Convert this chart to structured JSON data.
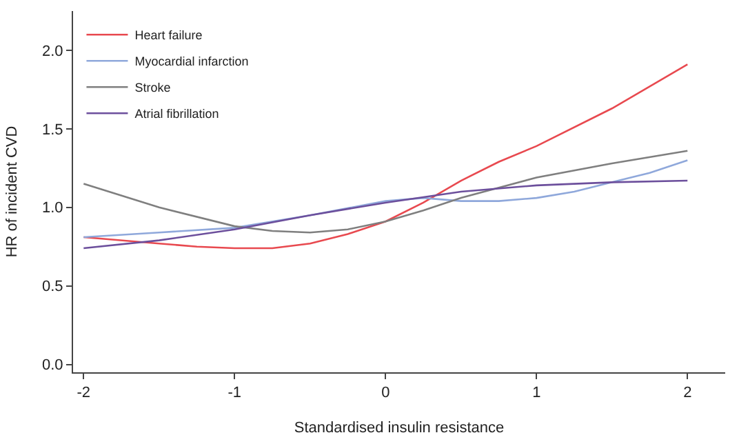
{
  "chart_data": {
    "type": "line",
    "xlabel": "Standardised insulin resistance",
    "ylabel": "HR of incident CVD",
    "xlim": [
      -2.07,
      2.25
    ],
    "xticks": [
      -2,
      -1,
      0,
      1,
      2
    ],
    "ylim": [
      -0.05,
      2.25
    ],
    "yticks": [
      {
        "value": 0,
        "label": "0.0"
      },
      0.5,
      {
        "value": 1,
        "label": "1.0"
      },
      1.5,
      {
        "value": 2,
        "label": "2.0"
      }
    ],
    "legend": "top left",
    "marker": "none",
    "line_style": "solid",
    "series": [
      {
        "name": "Heart failure",
        "color": "#e8494f",
        "x": [
          -2,
          -1.5,
          -1.25,
          -1,
          -0.75,
          -0.5,
          -0.25,
          0,
          0.25,
          0.5,
          0.75,
          1,
          1.5,
          2
        ],
        "values": [
          0.81,
          0.77,
          0.75,
          0.74,
          0.74,
          0.77,
          0.83,
          0.91,
          1.03,
          1.17,
          1.29,
          1.39,
          1.63,
          1.91
        ]
      },
      {
        "name": "Myocardial infarction",
        "color": "#8fa8db",
        "x": [
          -2,
          -1.5,
          -1,
          -0.5,
          0,
          0.25,
          0.5,
          0.75,
          1,
          1.25,
          1.5,
          1.75,
          2
        ],
        "values": [
          0.81,
          0.84,
          0.87,
          0.95,
          1.04,
          1.06,
          1.04,
          1.04,
          1.06,
          1.1,
          1.16,
          1.22,
          1.3
        ]
      },
      {
        "name": "Stroke",
        "color": "#7f7f7f",
        "x": [
          -2,
          -1.5,
          -1,
          -0.75,
          -0.5,
          -0.25,
          0,
          0.25,
          0.5,
          1,
          1.5,
          2
        ],
        "values": [
          1.15,
          1.0,
          0.88,
          0.85,
          0.84,
          0.86,
          0.91,
          0.98,
          1.06,
          1.19,
          1.28,
          1.36
        ]
      },
      {
        "name": "Atrial fibrillation",
        "color": "#6c4f9c",
        "x": [
          -2,
          -1.5,
          -1,
          -0.5,
          0,
          0.5,
          1,
          1.5,
          2
        ],
        "values": [
          0.74,
          0.79,
          0.86,
          0.95,
          1.03,
          1.1,
          1.14,
          1.16,
          1.17
        ]
      }
    ]
  }
}
